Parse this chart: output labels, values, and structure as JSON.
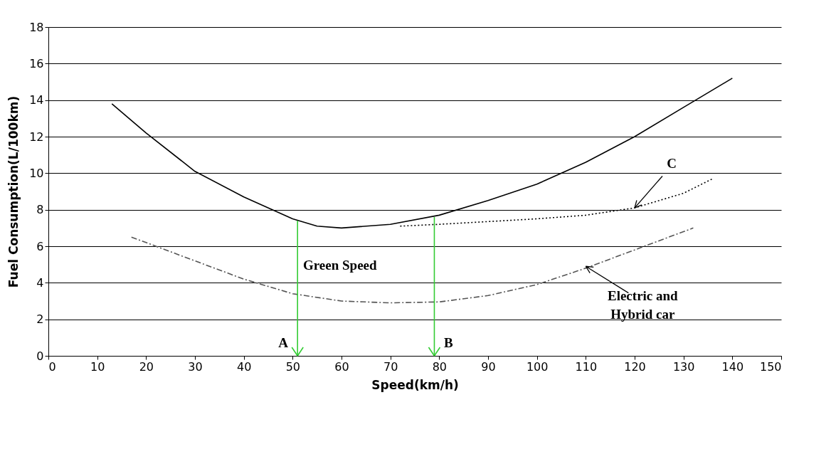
{
  "chart_data": {
    "type": "line",
    "xlabel": "Speed(km/h)",
    "ylabel": "Fuel Consumption(L/100km)",
    "xlim": [
      0,
      150
    ],
    "xticks": [
      0,
      10,
      20,
      30,
      40,
      50,
      60,
      70,
      80,
      90,
      100,
      110,
      120,
      130,
      140,
      150
    ],
    "ylim": [
      0,
      18
    ],
    "yticks": [
      0,
      2,
      4,
      6,
      8,
      10,
      12,
      14,
      16,
      18
    ],
    "grid": "y",
    "series": [
      {
        "color": "#000000",
        "line_style": "solid",
        "x": [
          13,
          20,
          30,
          40,
          50,
          55,
          60,
          70,
          80,
          90,
          100,
          110,
          120,
          130,
          140
        ],
        "values": [
          13.8,
          12.2,
          10.1,
          8.7,
          7.5,
          7.1,
          7.0,
          7.2,
          7.7,
          8.5,
          9.4,
          10.6,
          12.0,
          13.6,
          15.2
        ]
      },
      {
        "color": "#000000",
        "line_style": "dotted",
        "x": [
          72,
          80,
          90,
          100,
          110,
          120,
          130,
          136
        ],
        "values": [
          7.1,
          7.2,
          7.35,
          7.5,
          7.7,
          8.1,
          8.9,
          9.7
        ]
      },
      {
        "color": "#555555",
        "line_style": "dashed",
        "x": [
          17,
          20,
          30,
          40,
          50,
          60,
          70,
          80,
          90,
          100,
          110,
          120,
          132
        ],
        "values": [
          6.5,
          6.2,
          5.2,
          4.2,
          3.4,
          3.0,
          2.9,
          2.95,
          3.3,
          3.9,
          4.8,
          5.8,
          7.0
        ]
      },
      {
        "color": "#33cc33",
        "line_style": "solid",
        "x": [
          51,
          51
        ],
        "values": [
          7.4,
          0
        ]
      },
      {
        "color": "#33cc33",
        "line_style": "solid",
        "x": [
          79,
          79
        ],
        "values": [
          7.6,
          0
        ]
      }
    ],
    "annotations": [
      {
        "text": "A",
        "x": 51,
        "y": 0
      },
      {
        "text": "B",
        "x": 79,
        "y": 0
      },
      "Green Speed",
      {
        "text": "C",
        "x": 120,
        "y": 8.1
      },
      {
        "text": "Electric and\nHybrid car",
        "x": 110,
        "y": 4.9
      }
    ]
  }
}
